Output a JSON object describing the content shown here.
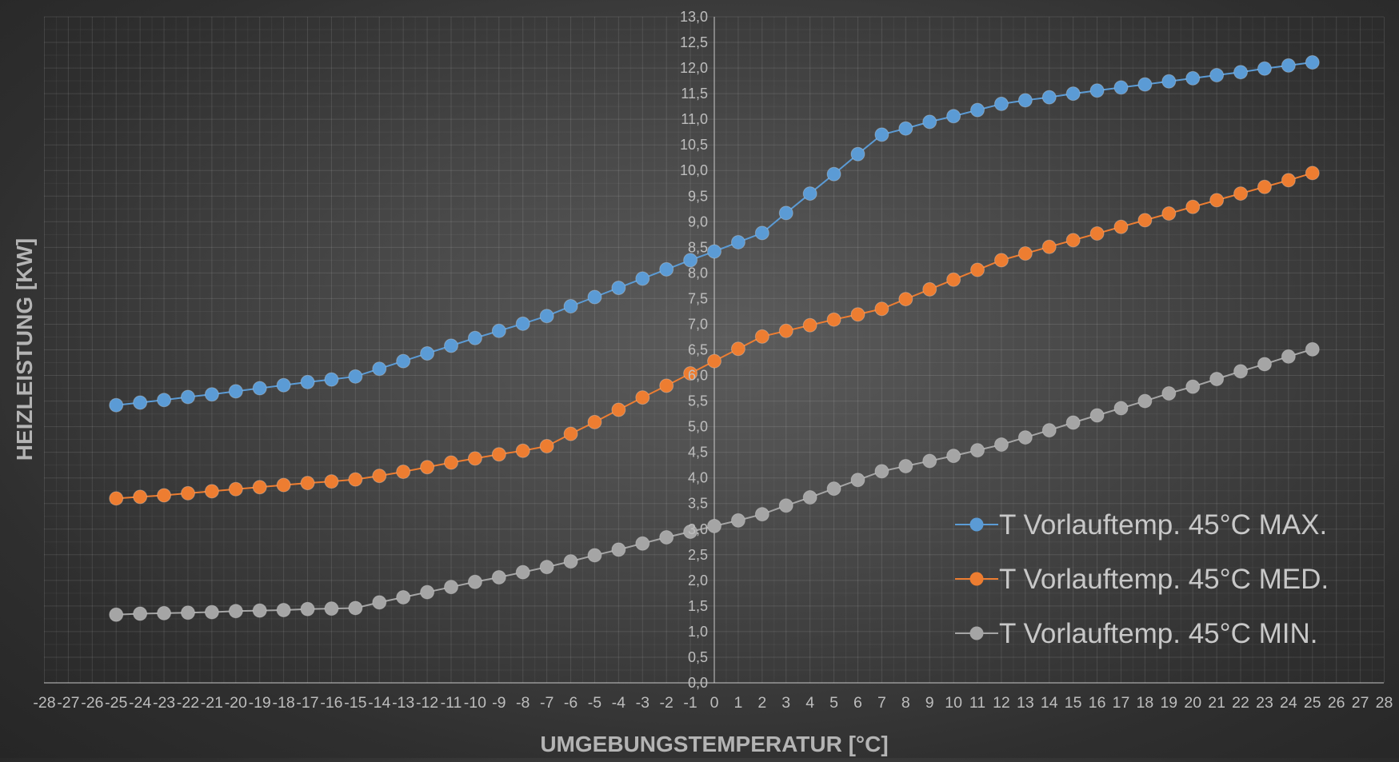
{
  "chart_data": {
    "type": "line",
    "title": "",
    "xlabel": "UMGEBUNGSTEMPERATUR [°C]",
    "ylabel": "HEIZLEISTUNG [KW]",
    "xlim": [
      -28,
      28
    ],
    "ylim": [
      0,
      13
    ],
    "x_tick_step": 1,
    "y_tick_step": 0.5,
    "y_tick_format": "comma_1_decimal",
    "grid": true,
    "legend_position": "bottom-right",
    "x": [
      -25,
      -24,
      -23,
      -22,
      -21,
      -20,
      -19,
      -18,
      -17,
      -16,
      -15,
      -14,
      -13,
      -12,
      -11,
      -10,
      -9,
      -8,
      -7,
      -6,
      -5,
      -4,
      -3,
      -2,
      -1,
      0,
      1,
      2,
      3,
      4,
      5,
      6,
      7,
      8,
      9,
      10,
      11,
      12,
      13,
      14,
      15,
      16,
      17,
      18,
      19,
      20,
      21,
      22,
      23,
      24,
      25
    ],
    "series": [
      {
        "name": "T Vorlauftemp. 45°C MAX.",
        "color": "#5b9bd5",
        "values": [
          5.42,
          5.47,
          5.52,
          5.58,
          5.63,
          5.69,
          5.75,
          5.81,
          5.87,
          5.92,
          5.98,
          6.13,
          6.28,
          6.43,
          6.58,
          6.73,
          6.87,
          7.01,
          7.16,
          7.35,
          7.53,
          7.71,
          7.89,
          8.07,
          8.25,
          8.42,
          8.6,
          8.78,
          9.17,
          9.55,
          9.93,
          10.32,
          10.7,
          10.82,
          10.95,
          11.06,
          11.18,
          11.3,
          11.37,
          11.43,
          11.5,
          11.56,
          11.62,
          11.68,
          11.74,
          11.8,
          11.86,
          11.92,
          11.99,
          12.05,
          12.11
        ]
      },
      {
        "name": "T Vorlauftemp. 45°C MED.",
        "color": "#ed7d31",
        "values": [
          3.6,
          3.63,
          3.66,
          3.7,
          3.74,
          3.78,
          3.82,
          3.86,
          3.9,
          3.93,
          3.97,
          4.04,
          4.12,
          4.21,
          4.3,
          4.38,
          4.46,
          4.53,
          4.62,
          4.86,
          5.09,
          5.33,
          5.57,
          5.8,
          6.04,
          6.28,
          6.52,
          6.76,
          6.87,
          6.98,
          7.09,
          7.19,
          7.3,
          7.49,
          7.68,
          7.87,
          8.06,
          8.25,
          8.38,
          8.51,
          8.64,
          8.77,
          8.9,
          9.03,
          9.16,
          9.29,
          9.42,
          9.55,
          9.68,
          9.81,
          9.95
        ]
      },
      {
        "name": "T Vorlauftemp. 45°C MIN.",
        "color": "#a5a5a5",
        "values": [
          1.33,
          1.35,
          1.36,
          1.37,
          1.38,
          1.4,
          1.41,
          1.42,
          1.44,
          1.45,
          1.46,
          1.57,
          1.67,
          1.77,
          1.87,
          1.97,
          2.06,
          2.16,
          2.26,
          2.37,
          2.49,
          2.6,
          2.72,
          2.84,
          2.95,
          3.06,
          3.17,
          3.29,
          3.46,
          3.62,
          3.79,
          3.96,
          4.13,
          4.23,
          4.33,
          4.43,
          4.54,
          4.65,
          4.79,
          4.93,
          5.08,
          5.22,
          5.36,
          5.5,
          5.65,
          5.78,
          5.93,
          6.08,
          6.22,
          6.37,
          6.51
        ]
      }
    ]
  }
}
